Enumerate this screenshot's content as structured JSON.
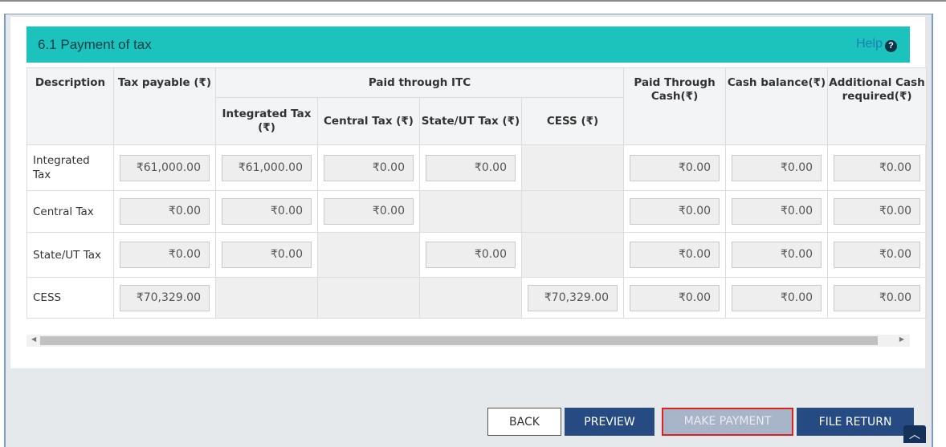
{
  "section": {
    "title": "6.1 Payment of tax",
    "help_label": "Help",
    "help_icon": "question-circle-icon"
  },
  "table": {
    "headers": {
      "description": "Description",
      "tax_payable": "Tax payable (₹)",
      "paid_itc": "Paid through ITC",
      "integrated": "Integrated Tax (₹)",
      "central": "Central Tax (₹)",
      "state": "State/UT Tax (₹)",
      "cess": "CESS (₹)",
      "paid_cash": "Paid Through Cash(₹)",
      "cash_balance": "Cash balance(₹)",
      "additional": "Additional Cash required(₹)"
    },
    "rows": [
      {
        "desc": "Integrated Tax",
        "payable": "₹61,000.00",
        "integrated": "₹61,000.00",
        "central": "₹0.00",
        "state": "₹0.00",
        "cess": null,
        "paid_cash": "₹0.00",
        "cash_balance": "₹0.00",
        "additional": "₹0.00"
      },
      {
        "desc": "Central Tax",
        "payable": "₹0.00",
        "integrated": "₹0.00",
        "central": "₹0.00",
        "state": null,
        "cess": null,
        "paid_cash": "₹0.00",
        "cash_balance": "₹0.00",
        "additional": "₹0.00"
      },
      {
        "desc": "State/UT Tax",
        "payable": "₹0.00",
        "integrated": "₹0.00",
        "central": null,
        "state": "₹0.00",
        "cess": null,
        "paid_cash": "₹0.00",
        "cash_balance": "₹0.00",
        "additional": "₹0.00"
      },
      {
        "desc": "CESS",
        "payable": "₹70,329.00",
        "integrated": null,
        "central": null,
        "state": null,
        "cess": "₹70,329.00",
        "paid_cash": "₹0.00",
        "cash_balance": "₹0.00",
        "additional": "₹0.00"
      }
    ]
  },
  "buttons": {
    "back": "BACK",
    "preview": "PREVIEW",
    "make_payment": "MAKE PAYMENT",
    "file_return": "FILE RETURN"
  },
  "colors": {
    "header": "#1cc3bc",
    "primary_button": "#254b82",
    "highlight": "#e02020"
  }
}
